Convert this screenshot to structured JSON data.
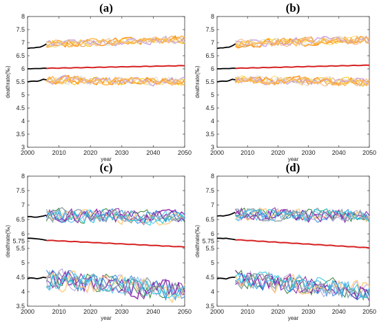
{
  "chart_data": [
    {
      "panel": "(a)",
      "type": "line",
      "xlabel": "year",
      "ylabel": "deathrate(‰)",
      "xlim": [
        2000,
        2050
      ],
      "ylim": [
        3,
        8
      ],
      "xticks": [
        2000,
        2010,
        2020,
        2030,
        2040,
        2050
      ],
      "yticks": [
        3,
        3.5,
        4,
        4.5,
        5,
        5.5,
        6,
        6.5,
        7,
        7.5,
        8
      ],
      "ytick_labels": [
        "3",
        "3.5",
        "4",
        "4.5",
        "5",
        "5.5",
        "6",
        "6.5",
        "7",
        "7.5",
        "8"
      ],
      "historical": [
        {
          "x": [
            2000,
            2001,
            2002,
            2003,
            2004,
            2005,
            2006
          ],
          "y": [
            6.78,
            6.8,
            6.8,
            6.82,
            6.83,
            6.88,
            6.95
          ]
        },
        {
          "x": [
            2000,
            2001,
            2002,
            2003,
            2004,
            2005,
            2006
          ],
          "y": [
            6.0,
            6.0,
            6.01,
            6.01,
            6.01,
            6.02,
            6.02
          ]
        },
        {
          "x": [
            2000,
            2001,
            2002,
            2003,
            2004,
            2005,
            2006
          ],
          "y": [
            5.5,
            5.52,
            5.53,
            5.52,
            5.55,
            5.6,
            5.58
          ]
        }
      ],
      "mean_projection": {
        "x": [
          2006,
          2050
        ],
        "y": [
          6.02,
          6.12
        ]
      },
      "ensemble_bands": [
        {
          "x_start": 2006,
          "x_end": 2050,
          "y_start": 6.95,
          "y_end": 7.12,
          "spread": 0.18
        },
        {
          "x_start": 2006,
          "x_end": 2050,
          "y_start": 5.58,
          "y_end": 5.5,
          "spread": 0.2
        }
      ],
      "ensemble_colors": [
        "#f5c400",
        "#ff8c00",
        "#e69a3c",
        "#ffd866",
        "#c8a0e0",
        "#f4b183",
        "#d9d9d9",
        "#ffb347"
      ]
    },
    {
      "panel": "(b)",
      "type": "line",
      "xlabel": "year",
      "ylabel": "deathrate(‰)",
      "xlim": [
        2000,
        2050
      ],
      "ylim": [
        3,
        8
      ],
      "xticks": [
        2000,
        2010,
        2020,
        2030,
        2040,
        2050
      ],
      "yticks": [
        3,
        3.5,
        4,
        4.5,
        5,
        5.5,
        6,
        6.5,
        7,
        7.5,
        8
      ],
      "ytick_labels": [
        "3",
        "3.5",
        "4",
        "4.5",
        "5",
        "5.5",
        "6",
        "6.5",
        "7",
        "7.5",
        "8"
      ],
      "historical": [
        {
          "x": [
            2000,
            2001,
            2002,
            2003,
            2004,
            2005,
            2006
          ],
          "y": [
            6.78,
            6.8,
            6.8,
            6.82,
            6.83,
            6.88,
            6.95
          ]
        },
        {
          "x": [
            2000,
            2001,
            2002,
            2003,
            2004,
            2005,
            2006
          ],
          "y": [
            6.0,
            6.0,
            6.01,
            6.01,
            6.01,
            6.02,
            6.02
          ]
        },
        {
          "x": [
            2000,
            2001,
            2002,
            2003,
            2004,
            2005,
            2006
          ],
          "y": [
            5.5,
            5.52,
            5.53,
            5.52,
            5.55,
            5.6,
            5.58
          ]
        }
      ],
      "mean_projection": {
        "x": [
          2006,
          2050
        ],
        "y": [
          6.02,
          6.14
        ]
      },
      "ensemble_bands": [
        {
          "x_start": 2006,
          "x_end": 2050,
          "y_start": 6.95,
          "y_end": 7.12,
          "spread": 0.2
        },
        {
          "x_start": 2006,
          "x_end": 2050,
          "y_start": 5.58,
          "y_end": 5.5,
          "spread": 0.2
        }
      ],
      "ensemble_colors": [
        "#f5c400",
        "#ff8c00",
        "#e69a3c",
        "#ffd866",
        "#c8a0e0",
        "#f4b183",
        "#d9d9d9",
        "#ffb347"
      ]
    },
    {
      "panel": "(c)",
      "type": "line",
      "xlabel": "year",
      "ylabel": "deathrate(‰)",
      "xlim": [
        2000,
        2050
      ],
      "ylim": [
        3.5,
        8
      ],
      "xticks": [
        2000,
        2010,
        2020,
        2030,
        2040,
        2050
      ],
      "yticks": [
        3.5,
        4,
        4.5,
        5,
        5.5,
        5.75,
        6,
        6.5,
        7,
        7.5,
        8
      ],
      "ytick_labels": [
        "3.5",
        "4",
        "4.5",
        "5",
        "5.5",
        "5.75",
        "6",
        "6.5",
        "7",
        "7.5",
        "8"
      ],
      "historical": [
        {
          "x": [
            2000,
            2001,
            2002,
            2003,
            2004,
            2005,
            2006
          ],
          "y": [
            6.6,
            6.6,
            6.58,
            6.58,
            6.6,
            6.62,
            6.65
          ]
        },
        {
          "x": [
            2000,
            2001,
            2002,
            2003,
            2004,
            2005,
            2006
          ],
          "y": [
            5.85,
            5.85,
            5.84,
            5.83,
            5.82,
            5.8,
            5.78
          ]
        },
        {
          "x": [
            2000,
            2001,
            2002,
            2003,
            2004,
            2005,
            2006
          ],
          "y": [
            4.45,
            4.48,
            4.47,
            4.45,
            4.47,
            4.5,
            4.48
          ]
        }
      ],
      "mean_projection": {
        "x": [
          2006,
          2050
        ],
        "y": [
          5.78,
          5.55
        ]
      },
      "ensemble_bands": [
        {
          "x_start": 2006,
          "x_end": 2050,
          "y_start": 6.65,
          "y_end": 6.55,
          "spread": 0.3
        },
        {
          "x_start": 2006,
          "x_end": 2050,
          "y_start": 4.45,
          "y_end": 4.0,
          "spread": 0.45
        }
      ],
      "ensemble_colors": [
        "#2e7d32",
        "#8e24aa",
        "#1e88e5",
        "#b39ddb",
        "#ffcc80",
        "#4fc3f7",
        "#7b1fa2",
        "#90a4ae",
        "#26c6da"
      ]
    },
    {
      "panel": "(d)",
      "type": "line",
      "xlabel": "year",
      "ylabel": "deathrate(‰)",
      "xlim": [
        2000,
        2050
      ],
      "ylim": [
        3.5,
        8
      ],
      "xticks": [
        2000,
        2010,
        2020,
        2030,
        2040,
        2050
      ],
      "yticks": [
        3.5,
        4,
        4.5,
        5,
        5.5,
        5.75,
        6,
        6.5,
        7,
        7.5,
        8
      ],
      "ytick_labels": [
        "3.5",
        "4",
        "4.5",
        "5",
        "5.5",
        "5.75",
        "6",
        "6.5",
        "7",
        "7.5",
        "8"
      ],
      "historical": [
        {
          "x": [
            2000,
            2001,
            2002,
            2003,
            2004,
            2005,
            2006
          ],
          "y": [
            6.62,
            6.63,
            6.62,
            6.64,
            6.66,
            6.7,
            6.75
          ]
        },
        {
          "x": [
            2000,
            2001,
            2002,
            2003,
            2004,
            2005,
            2006
          ],
          "y": [
            5.85,
            5.85,
            5.84,
            5.85,
            5.83,
            5.82,
            5.8
          ]
        },
        {
          "x": [
            2000,
            2001,
            2002,
            2003,
            2004,
            2005,
            2006
          ],
          "y": [
            4.45,
            4.47,
            4.46,
            4.44,
            4.48,
            4.5,
            4.5
          ]
        }
      ],
      "mean_projection": {
        "x": [
          2006,
          2050
        ],
        "y": [
          5.8,
          5.52
        ]
      },
      "ensemble_bands": [
        {
          "x_start": 2006,
          "x_end": 2050,
          "y_start": 6.7,
          "y_end": 6.6,
          "spread": 0.28
        },
        {
          "x_start": 2006,
          "x_end": 2050,
          "y_start": 4.45,
          "y_end": 4.0,
          "spread": 0.4
        }
      ],
      "ensemble_colors": [
        "#2e7d32",
        "#8e24aa",
        "#1e88e5",
        "#b39ddb",
        "#ffcc80",
        "#4fc3f7",
        "#7b1fa2",
        "#90a4ae",
        "#26c6da"
      ]
    }
  ]
}
